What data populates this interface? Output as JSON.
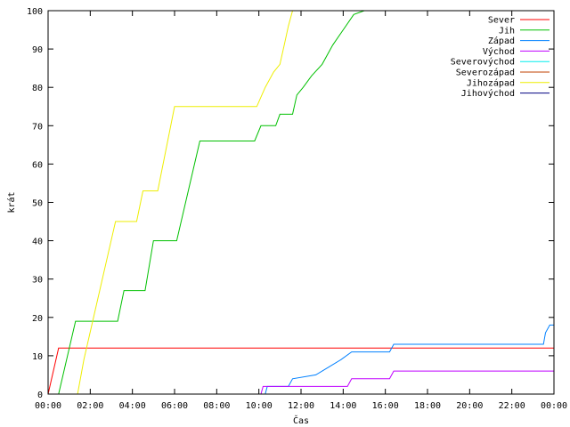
{
  "chart_data": {
    "type": "line",
    "title": "",
    "xlabel": "Čas",
    "ylabel": "krát",
    "xlim": [
      0,
      24
    ],
    "ylim": [
      0,
      100
    ],
    "x_ticks": [
      {
        "value": 0,
        "label": "00:00"
      },
      {
        "value": 2,
        "label": "02:00"
      },
      {
        "value": 4,
        "label": "04:00"
      },
      {
        "value": 6,
        "label": "06:00"
      },
      {
        "value": 8,
        "label": "08:00"
      },
      {
        "value": 10,
        "label": "10:00"
      },
      {
        "value": 12,
        "label": "12:00"
      },
      {
        "value": 14,
        "label": "14:00"
      },
      {
        "value": 16,
        "label": "16:00"
      },
      {
        "value": 18,
        "label": "18:00"
      },
      {
        "value": 20,
        "label": "20:00"
      },
      {
        "value": 22,
        "label": "22:00"
      },
      {
        "value": 24,
        "label": "00:00"
      }
    ],
    "y_ticks": [
      0,
      10,
      20,
      30,
      40,
      50,
      60,
      70,
      80,
      90,
      100
    ],
    "grid": false,
    "legend_position": "top-right",
    "series": [
      {
        "name": "Sever",
        "color": "#ff0000",
        "points": [
          [
            0,
            0
          ],
          [
            0.5,
            12
          ],
          [
            24,
            12
          ]
        ]
      },
      {
        "name": "Jih",
        "color": "#00c000",
        "points": [
          [
            0.5,
            0
          ],
          [
            1.3,
            19
          ],
          [
            3.3,
            19
          ],
          [
            3.6,
            27
          ],
          [
            4.6,
            27
          ],
          [
            5.0,
            40
          ],
          [
            6.1,
            40
          ],
          [
            7.2,
            66
          ],
          [
            9.8,
            66
          ],
          [
            10.1,
            70
          ],
          [
            10.8,
            70
          ],
          [
            11.0,
            73
          ],
          [
            11.6,
            73
          ],
          [
            11.8,
            78
          ],
          [
            12.1,
            80
          ],
          [
            12.5,
            83
          ],
          [
            13.0,
            86
          ],
          [
            13.5,
            91
          ],
          [
            14.0,
            95
          ],
          [
            14.5,
            99
          ],
          [
            15.0,
            100
          ],
          [
            24,
            100
          ]
        ]
      },
      {
        "name": "Západ",
        "color": "#0080ff",
        "points": [
          [
            10.3,
            0
          ],
          [
            10.4,
            2
          ],
          [
            11.4,
            2
          ],
          [
            11.6,
            4
          ],
          [
            12.7,
            5
          ],
          [
            13.3,
            7
          ],
          [
            13.9,
            9
          ],
          [
            14.4,
            11
          ],
          [
            16.2,
            11
          ],
          [
            16.4,
            13
          ],
          [
            23.5,
            13
          ],
          [
            23.6,
            16
          ],
          [
            23.8,
            18
          ],
          [
            24,
            18
          ]
        ]
      },
      {
        "name": "Východ",
        "color": "#c000ff",
        "points": [
          [
            10.1,
            0
          ],
          [
            10.2,
            2
          ],
          [
            14.2,
            2
          ],
          [
            14.4,
            4
          ],
          [
            16.2,
            4
          ],
          [
            16.4,
            6
          ],
          [
            24,
            6
          ]
        ]
      },
      {
        "name": "Severovýchod",
        "color": "#00eeee",
        "points": []
      },
      {
        "name": "Severozápad",
        "color": "#c04000",
        "points": []
      },
      {
        "name": "Jihozápad",
        "color": "#eeee00",
        "points": [
          [
            1.4,
            0
          ],
          [
            1.7,
            9
          ],
          [
            3.2,
            45
          ],
          [
            4.2,
            45
          ],
          [
            4.5,
            53
          ],
          [
            5.2,
            53
          ],
          [
            6.0,
            75
          ],
          [
            9.9,
            75
          ],
          [
            10.3,
            80
          ],
          [
            10.7,
            84
          ],
          [
            11.0,
            86
          ],
          [
            11.2,
            91
          ],
          [
            11.4,
            96
          ],
          [
            11.6,
            100
          ],
          [
            12.0,
            100
          ]
        ]
      },
      {
        "name": "Jihovýchod",
        "color": "#000080",
        "points": []
      }
    ]
  }
}
